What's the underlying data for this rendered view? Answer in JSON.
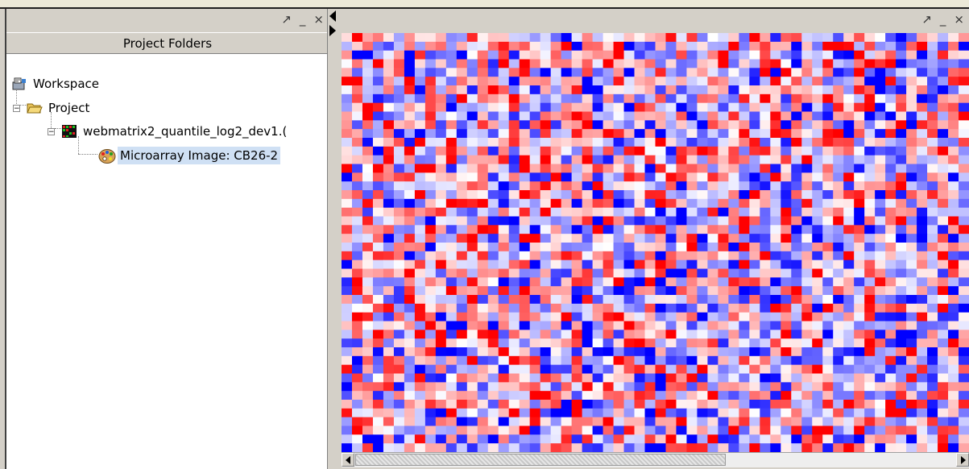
{
  "window_controls": {
    "maximize": "↗",
    "minimize": "_",
    "close": "×"
  },
  "left_panel": {
    "header": "Project Folders",
    "tree": [
      {
        "label": "Workspace",
        "icon": "workspace-icon",
        "level": 0
      },
      {
        "label": "Project",
        "icon": "folder-open-icon",
        "level": 1,
        "expander": "−"
      },
      {
        "label": "webmatrix2_quantile_log2_dev1.(",
        "icon": "matrix-grid-icon",
        "level": 2,
        "expander": "−"
      },
      {
        "label": "Microarray Image: CB26-2",
        "icon": "palette-icon",
        "level": 3,
        "selected": true
      }
    ]
  },
  "right_panel": {
    "heatmap": {
      "rows": 48,
      "cols": 60,
      "colors": {
        "high": "#ff0000",
        "neutral": "#ffffff",
        "low": "#0000ff"
      }
    }
  }
}
